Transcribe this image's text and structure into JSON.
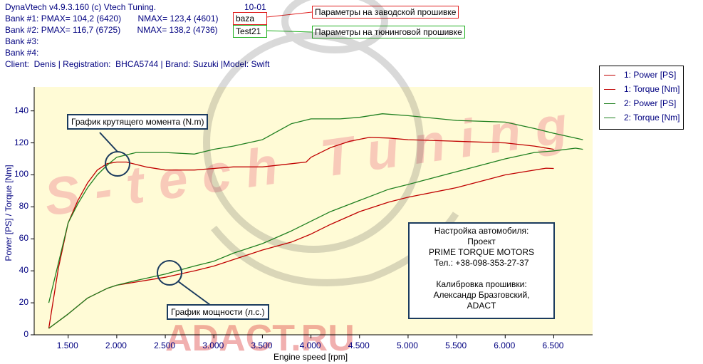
{
  "header": {
    "line1": "DynaVtech v4.9.3.160 (c) Vtech Tuning.",
    "code": "10-01",
    "bank1": "Bank #1: PMAX= 104,2 (6420)       NMAX= 123,4 (4601)",
    "bank2": "Bank #2: PMAX= 116,7 (6725)       NMAX= 138,2 (4736)",
    "bank3": "Bank #3:",
    "bank4": "Bank #4:",
    "client": "Client:  Denis | Registration:  BHCA5744 | Brand: Suzuki |Model: Swift",
    "bank1_name": "baza",
    "bank2_name": "Test21",
    "bank1_label": "Параметры на заводской прошивке",
    "bank2_label": "Параметры на тюнинговой прошивке"
  },
  "annotations": {
    "torque_label": "График крутящего момента (N.m)",
    "power_label": "График мощности (л.с.)"
  },
  "info_box": {
    "lines": [
      "Настройка автомобиля:",
      "Проект",
      "PRIME TORQUE MOTORS",
      "Тел.: +38-098-353-27-37"
    ],
    "red_line": "Калибровка прошивки:",
    "lines2": [
      "Александр Бразговский,",
      "ADACT"
    ]
  },
  "watermark": {
    "text1": "S-tech Tuning",
    "text2": "ADACT.RU"
  },
  "colors": {
    "bank1": "#c00000",
    "bank2": "#208020",
    "axis_text": "#000080",
    "plot_bg": "#fffbd6"
  },
  "chart_data": {
    "type": "line",
    "xlabel": "Engine speed [rpm]",
    "ylabel": "Power [PS] / Torque [Nm]",
    "xlim": [
      1150,
      6900
    ],
    "ylim": [
      0,
      155
    ],
    "x_ticks": [
      1500,
      2000,
      2500,
      3000,
      3500,
      4000,
      4500,
      5000,
      5500,
      6000,
      6500
    ],
    "x_tick_labels": [
      "1.500",
      "2.000",
      "2.500",
      "3.000",
      "3.500",
      "4.000",
      "4.500",
      "5.000",
      "5.500",
      "6.000",
      "6.500"
    ],
    "y_ticks": [
      0,
      20,
      40,
      60,
      80,
      100,
      120,
      140
    ],
    "legend_position": "top-right",
    "series": [
      {
        "name": "1: Power [PS]",
        "color": "#c00000",
        "x": [
          1300,
          1500,
          1700,
          1900,
          2000,
          2200,
          2500,
          2800,
          3000,
          3200,
          3500,
          3800,
          4000,
          4200,
          4500,
          4800,
          5000,
          5500,
          6000,
          6200,
          6420,
          6500
        ],
        "y": [
          4,
          13,
          23,
          29,
          31,
          33,
          36,
          40,
          43,
          47,
          53,
          58,
          63,
          69,
          77,
          83,
          86,
          92,
          100,
          102,
          104.2,
          104
        ]
      },
      {
        "name": "1: Torque [Nm]",
        "color": "#c00000",
        "x": [
          1300,
          1400,
          1500,
          1600,
          1700,
          1800,
          1900,
          2000,
          2100,
          2300,
          2500,
          2800,
          3000,
          3200,
          3500,
          3800,
          3950,
          4000,
          4200,
          4400,
          4601,
          4800,
          5000,
          5500,
          6000,
          6300,
          6500
        ],
        "y": [
          4,
          42,
          70,
          84,
          95,
          103,
          107,
          108,
          108,
          105,
          103,
          103,
          104,
          105,
          105,
          107,
          108,
          111,
          117,
          121,
          123.4,
          123,
          122,
          121,
          120,
          118,
          116
        ]
      },
      {
        "name": "2: Power [PS]",
        "color": "#208020",
        "x": [
          1300,
          1500,
          1700,
          1900,
          2000,
          2200,
          2500,
          2800,
          3000,
          3200,
          3500,
          3800,
          4000,
          4200,
          4500,
          4800,
          5000,
          5500,
          6000,
          6300,
          6500,
          6725,
          6800
        ],
        "y": [
          4,
          13,
          23,
          29,
          31,
          34,
          38,
          43,
          46,
          51,
          57,
          65,
          71,
          77,
          84,
          91,
          94,
          102,
          110,
          114,
          115,
          116.7,
          116
        ]
      },
      {
        "name": "2: Torque [Nm]",
        "color": "#208020",
        "x": [
          1300,
          1400,
          1500,
          1600,
          1700,
          1800,
          1900,
          2000,
          2200,
          2500,
          2800,
          3000,
          3200,
          3500,
          3800,
          4000,
          4300,
          4500,
          4736,
          5000,
          5500,
          6000,
          6300,
          6500,
          6800
        ],
        "y": [
          20,
          45,
          70,
          82,
          92,
          100,
          106,
          111,
          114,
          114,
          113,
          116,
          118,
          122,
          132,
          135,
          135,
          136,
          138.2,
          137,
          134,
          133,
          129,
          126,
          122
        ]
      }
    ]
  }
}
